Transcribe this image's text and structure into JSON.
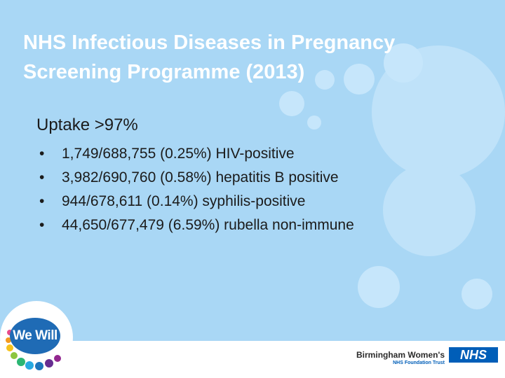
{
  "slide": {
    "title": "NHS Infectious Diseases in Pregnancy Screening Programme (2013)",
    "intro": "Uptake >97%",
    "bullet_char": "•",
    "bullets": [
      "1,749/688,755 (0.25%) HIV-positive",
      "3,982/690,760 (0.58%) hepatitis B positive",
      "944/678,611 (0.14%) syphilis-positive",
      "44,650/677,479 (6.59%) rubella non-immune"
    ]
  },
  "footer": {
    "campaign_logo_text": "We Will",
    "org_name": "Birmingham Women's",
    "nhs_badge": "NHS",
    "org_trust": "NHS Foundation Trust"
  },
  "colors": {
    "background": "#a9d7f5",
    "bubble": "#c2e4fa",
    "title": "#ffffff",
    "body_text": "#1b1b1b",
    "nhs_blue": "#005eb8"
  }
}
